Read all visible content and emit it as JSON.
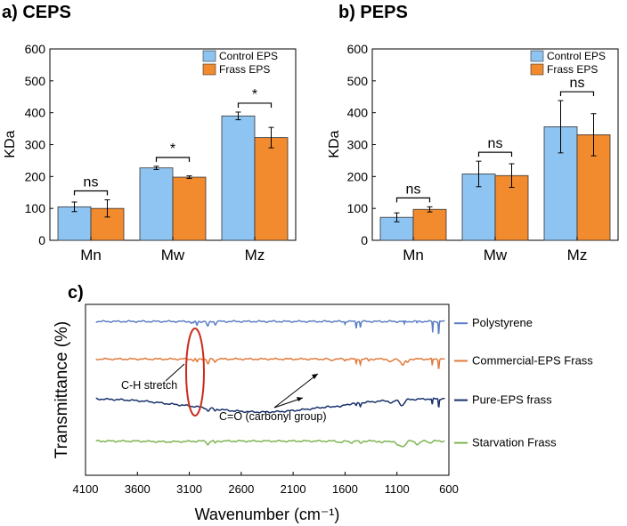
{
  "colors": {
    "control": "#8ec4f2",
    "frass": "#f28a2e",
    "polystyrene": "#5b7fc7",
    "commercial": "#e07a3a",
    "pure": "#17306a",
    "starvation": "#7db552",
    "ellipse": "#cc2a1a"
  },
  "chart_data": [
    {
      "id": "a",
      "type": "bar",
      "panel_label": "a) CEPS",
      "ylabel": "KDa",
      "ylim": [
        0,
        600
      ],
      "yticks": [
        "0",
        "100",
        "200",
        "300",
        "400",
        "500",
        "600"
      ],
      "categories": [
        "Mn",
        "Mw",
        "Mz"
      ],
      "series": [
        {
          "name": "Control EPS",
          "color_key": "control",
          "values": [
            105,
            227,
            390
          ],
          "errors": [
            15,
            5,
            12
          ]
        },
        {
          "name": "Frass EPS",
          "color_key": "frass",
          "values": [
            100,
            198,
            322
          ],
          "errors": [
            27,
            4,
            32
          ]
        }
      ],
      "significance": [
        "ns",
        "*",
        "*"
      ],
      "legend_position": "top-right"
    },
    {
      "id": "b",
      "type": "bar",
      "panel_label": "b) PEPS",
      "ylabel": "KDa",
      "ylim": [
        0,
        600
      ],
      "yticks": [
        "0",
        "100",
        "200",
        "300",
        "400",
        "500",
        "600"
      ],
      "categories": [
        "Mn",
        "Mw",
        "Mz"
      ],
      "series": [
        {
          "name": "Control EPS",
          "color_key": "control",
          "values": [
            72,
            208,
            356
          ],
          "errors": [
            14,
            40,
            82
          ]
        },
        {
          "name": "Frass EPS",
          "color_key": "frass",
          "values": [
            97,
            203,
            331
          ],
          "errors": [
            8,
            37,
            66
          ]
        }
      ],
      "significance": [
        "ns",
        "ns",
        "ns"
      ],
      "legend_position": "top-right"
    },
    {
      "id": "c",
      "type": "line",
      "panel_label": "c)",
      "xlabel": "Wavenumber (cm⁻¹)",
      "ylabel": "Transmittance (%)",
      "xlim": [
        4100,
        600
      ],
      "xticks": [
        4100,
        3600,
        3100,
        2600,
        2100,
        1600,
        1100,
        600
      ],
      "series": [
        {
          "name": "Polystyrene",
          "color_key": "polystyrene",
          "offset": 0.9,
          "peaks": [
            [
              3082,
              0.15,
              10
            ],
            [
              3060,
              0.25,
              9
            ],
            [
              3026,
              0.45,
              9
            ],
            [
              2922,
              0.6,
              13
            ],
            [
              2850,
              0.35,
              10
            ],
            [
              1601,
              0.3,
              5
            ],
            [
              1493,
              0.75,
              5
            ],
            [
              1452,
              0.7,
              6
            ],
            [
              1028,
              0.35,
              5
            ],
            [
              906,
              0.2,
              4
            ],
            [
              756,
              1.25,
              4
            ],
            [
              698,
              1.6,
              5
            ]
          ]
        },
        {
          "name": "Commercial-EPS Frass",
          "color_key": "commercial",
          "offset": 0.68,
          "peaks": [
            [
              3060,
              0.2,
              10
            ],
            [
              3026,
              0.35,
              10
            ],
            [
              2920,
              0.55,
              15
            ],
            [
              2852,
              0.35,
              12
            ],
            [
              1735,
              0.2,
              15
            ],
            [
              1601,
              0.2,
              8
            ],
            [
              1493,
              0.55,
              6
            ],
            [
              1452,
              0.6,
              7
            ],
            [
              1370,
              0.2,
              10
            ],
            [
              1160,
              0.35,
              25
            ],
            [
              1045,
              0.7,
              25
            ],
            [
              1000,
              0.4,
              15
            ],
            [
              760,
              0.8,
              5
            ],
            [
              698,
              1.1,
              6
            ]
          ]
        },
        {
          "name": "Pure-EPS frass",
          "color_key": "pure",
          "offset": 0.45,
          "bump": [
            2400,
            900,
            -0.08
          ],
          "peaks": [
            [
              3300,
              0.05,
              150
            ],
            [
              2920,
              0.35,
              15
            ],
            [
              2852,
              0.2,
              12
            ],
            [
              1730,
              0.15,
              20
            ],
            [
              1640,
              0.2,
              30
            ],
            [
              1493,
              0.3,
              8
            ],
            [
              1452,
              0.35,
              8
            ],
            [
              1150,
              0.3,
              30
            ],
            [
              1050,
              0.65,
              30
            ],
            [
              760,
              0.7,
              6
            ],
            [
              698,
              1.0,
              6
            ]
          ]
        },
        {
          "name": "Starvation Frass",
          "color_key": "starvation",
          "offset": 0.2,
          "peaks": [
            [
              3300,
              0.08,
              200
            ],
            [
              2920,
              0.4,
              15
            ],
            [
              2852,
              0.25,
              12
            ],
            [
              1640,
              0.15,
              30
            ],
            [
              1540,
              0.15,
              25
            ],
            [
              1452,
              0.25,
              15
            ],
            [
              1240,
              0.2,
              25
            ],
            [
              1080,
              0.55,
              40
            ],
            [
              1030,
              0.45,
              25
            ],
            [
              900,
              0.35,
              30
            ],
            [
              780,
              0.2,
              20
            ]
          ]
        }
      ],
      "annotations": {
        "ch_stretch": "C-H stretch",
        "carbonyl": "C=O (carbonyl group)"
      }
    }
  ]
}
